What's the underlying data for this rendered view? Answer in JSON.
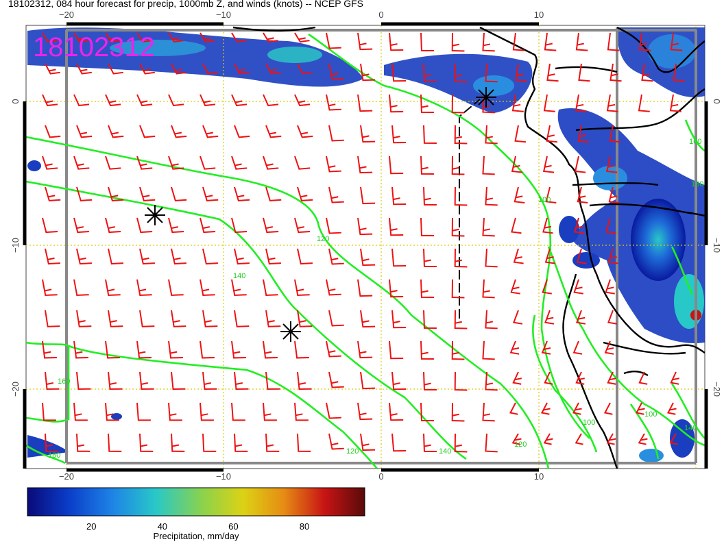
{
  "title": "18102312, 084 hour forecast for precip, 1000mb Z, and winds (knots) -- NCEP GFS",
  "stamp": "18102312",
  "axes": {
    "top_x_ticks": [
      "−20",
      "−10",
      "0",
      "10"
    ],
    "bottom_x_ticks": [
      "−20",
      "−10",
      "0",
      "10"
    ],
    "left_y_ticks": [
      "0",
      "−10",
      "−20"
    ],
    "right_y_ticks": [
      "0",
      "−10",
      "−20"
    ]
  },
  "contour_labels": [
    "120",
    "140",
    "100",
    "120",
    "140",
    "160",
    "180",
    "100",
    "100",
    "120",
    "140",
    "160",
    "180"
  ],
  "colorbar": {
    "title": "Precipitation, mm/day",
    "ticks": [
      "20",
      "40",
      "60",
      "80"
    ],
    "tick_values": [
      20,
      40,
      60,
      80
    ],
    "range": [
      2,
      97
    ],
    "colors": [
      "#0a0a78",
      "#0a3cc8",
      "#1e82e6",
      "#28c8c8",
      "#8cd24b",
      "#dcd214",
      "#e68c14",
      "#c81414",
      "#5a0a0a"
    ]
  },
  "colors": {
    "contour": "#22ee22",
    "wind_barb": "#ee1111",
    "graticule": "#ddcc00",
    "coastline": "#000000",
    "frame": "#888888"
  },
  "icons": [
    "low-pressure-marker-icon",
    "low-pressure-marker-icon",
    "low-pressure-marker-icon"
  ]
}
